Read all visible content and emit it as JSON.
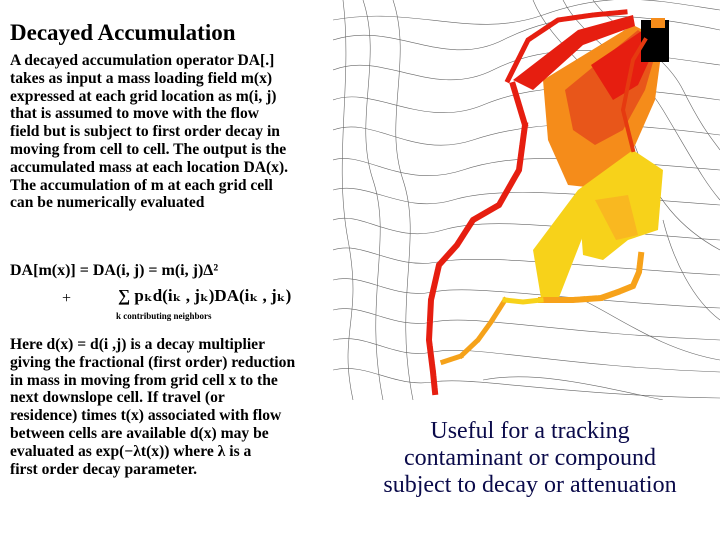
{
  "title": "Decayed Accumulation",
  "paragraph1": [
    "A decayed accumulation operator DA[.]",
    "takes as input a mass loading field m(x)",
    "expressed at each grid location as m(i, j)",
    "that is assumed to move with the flow",
    "field but is subject to first order decay in",
    "moving from cell to cell.  The output is the",
    "accumulated mass at each location DA(x).",
    "The accumulation of m at each grid cell",
    "can be numerically evaluated"
  ],
  "formula": {
    "line1": "DA[m(x)] = DA(i, j) = m(i, j)Δ²",
    "plus": "+",
    "line2": "∑ pₖd(iₖ , jₖ)DA(iₖ , jₖ)",
    "subscript": "k contributing neighbors"
  },
  "paragraph2": [
    "Here d(x) = d(i ,j) is a decay multiplier",
    "giving the fractional (first order) reduction",
    "in mass in moving from grid cell x to the",
    "next downslope cell.  If travel (or",
    "residence) times t(x) associated with flow",
    "between cells are available d(x) may be",
    "evaluated as  exp(−λt(x))  where λ is a",
    "first order decay parameter."
  ],
  "caption": [
    "Useful for a tracking",
    "contaminant or compound",
    "subject to decay or attenuation"
  ],
  "colors": {
    "caption": "#0a0a4a",
    "red": "#e61e10",
    "orange": "#f58c1a",
    "yellow": "#f7d21a",
    "black": "#000000",
    "contour": "#333333"
  }
}
